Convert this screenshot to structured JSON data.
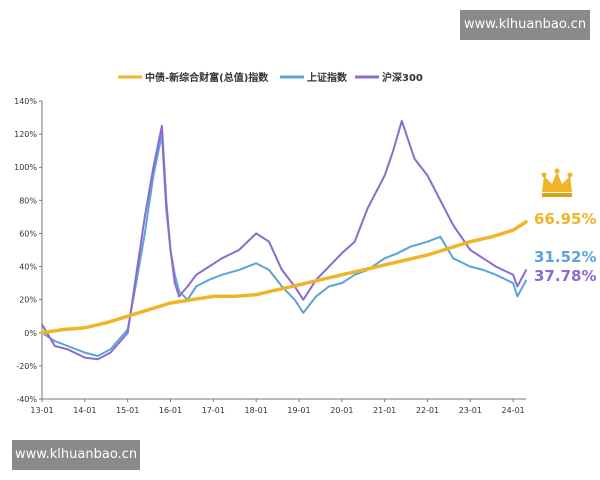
{
  "watermark": {
    "top": "www.klhuanbao.cn",
    "bottom": "www.klhuanbao.cn"
  },
  "chart_data": {
    "type": "line",
    "title": "",
    "xlabel": "",
    "ylabel": "",
    "ylim": [
      -40,
      140
    ],
    "grid": false,
    "legend_position": "top",
    "categories": [
      "13-01",
      "14-01",
      "15-01",
      "16-01",
      "17-01",
      "18-01",
      "19-01",
      "20-01",
      "21-01",
      "22-01",
      "23-01",
      "24-01"
    ],
    "y_ticks": [
      "-40%",
      "-20%",
      "0%",
      "20%",
      "40%",
      "60%",
      "80%",
      "100%",
      "120%",
      "140%"
    ],
    "series": [
      {
        "name": "中债-新综合财富(总值)指数",
        "color": "#f0b429",
        "end_label": "66.95%",
        "x": [
          0,
          0.5,
          1,
          1.5,
          2,
          2.5,
          3,
          3.5,
          4,
          4.5,
          5,
          5.5,
          6,
          6.5,
          7,
          7.5,
          8,
          8.5,
          9,
          9.5,
          10,
          10.5,
          11,
          11.3
        ],
        "y": [
          0,
          2,
          3,
          6,
          10,
          14,
          18,
          20,
          22,
          22,
          23,
          26,
          29,
          32,
          35,
          38,
          41,
          44,
          47,
          51,
          55,
          58,
          62,
          66.95
        ]
      },
      {
        "name": "上证指数",
        "color": "#5aa4dc",
        "end_label": "31.52%",
        "x": [
          0,
          0.3,
          0.6,
          1,
          1.3,
          1.6,
          2,
          2.2,
          2.4,
          2.6,
          2.8,
          2.9,
          3,
          3.1,
          3.2,
          3.4,
          3.6,
          3.9,
          4.2,
          4.6,
          5,
          5.3,
          5.6,
          5.9,
          6.1,
          6.4,
          6.7,
          7,
          7.3,
          7.6,
          8,
          8.3,
          8.6,
          9,
          9.3,
          9.6,
          10,
          10.3,
          10.6,
          11,
          11.1,
          11.3
        ],
        "y": [
          0,
          -5,
          -8,
          -12,
          -14,
          -10,
          2,
          30,
          60,
          95,
          120,
          75,
          50,
          35,
          25,
          20,
          28,
          32,
          35,
          38,
          42,
          38,
          28,
          20,
          12,
          22,
          28,
          30,
          35,
          38,
          45,
          48,
          52,
          55,
          58,
          45,
          40,
          38,
          35,
          30,
          22,
          31.52
        ]
      },
      {
        "name": "沪深300",
        "color": "#8b6bd0",
        "end_label": "37.78%",
        "x": [
          0,
          0.3,
          0.6,
          1,
          1.3,
          1.6,
          2,
          2.2,
          2.4,
          2.6,
          2.8,
          2.9,
          3,
          3.1,
          3.2,
          3.4,
          3.6,
          3.9,
          4.2,
          4.6,
          5,
          5.3,
          5.6,
          5.9,
          6.1,
          6.4,
          6.7,
          7,
          7.3,
          7.6,
          8,
          8.2,
          8.4,
          8.7,
          9,
          9.3,
          9.6,
          10,
          10.3,
          10.6,
          11,
          11.1,
          11.3
        ],
        "y": [
          5,
          -8,
          -10,
          -15,
          -16,
          -12,
          0,
          35,
          70,
          100,
          125,
          80,
          50,
          30,
          22,
          28,
          35,
          40,
          45,
          50,
          60,
          55,
          38,
          28,
          20,
          32,
          40,
          48,
          55,
          75,
          95,
          110,
          128,
          105,
          95,
          80,
          65,
          50,
          45,
          40,
          35,
          28,
          37.78
        ]
      }
    ]
  }
}
